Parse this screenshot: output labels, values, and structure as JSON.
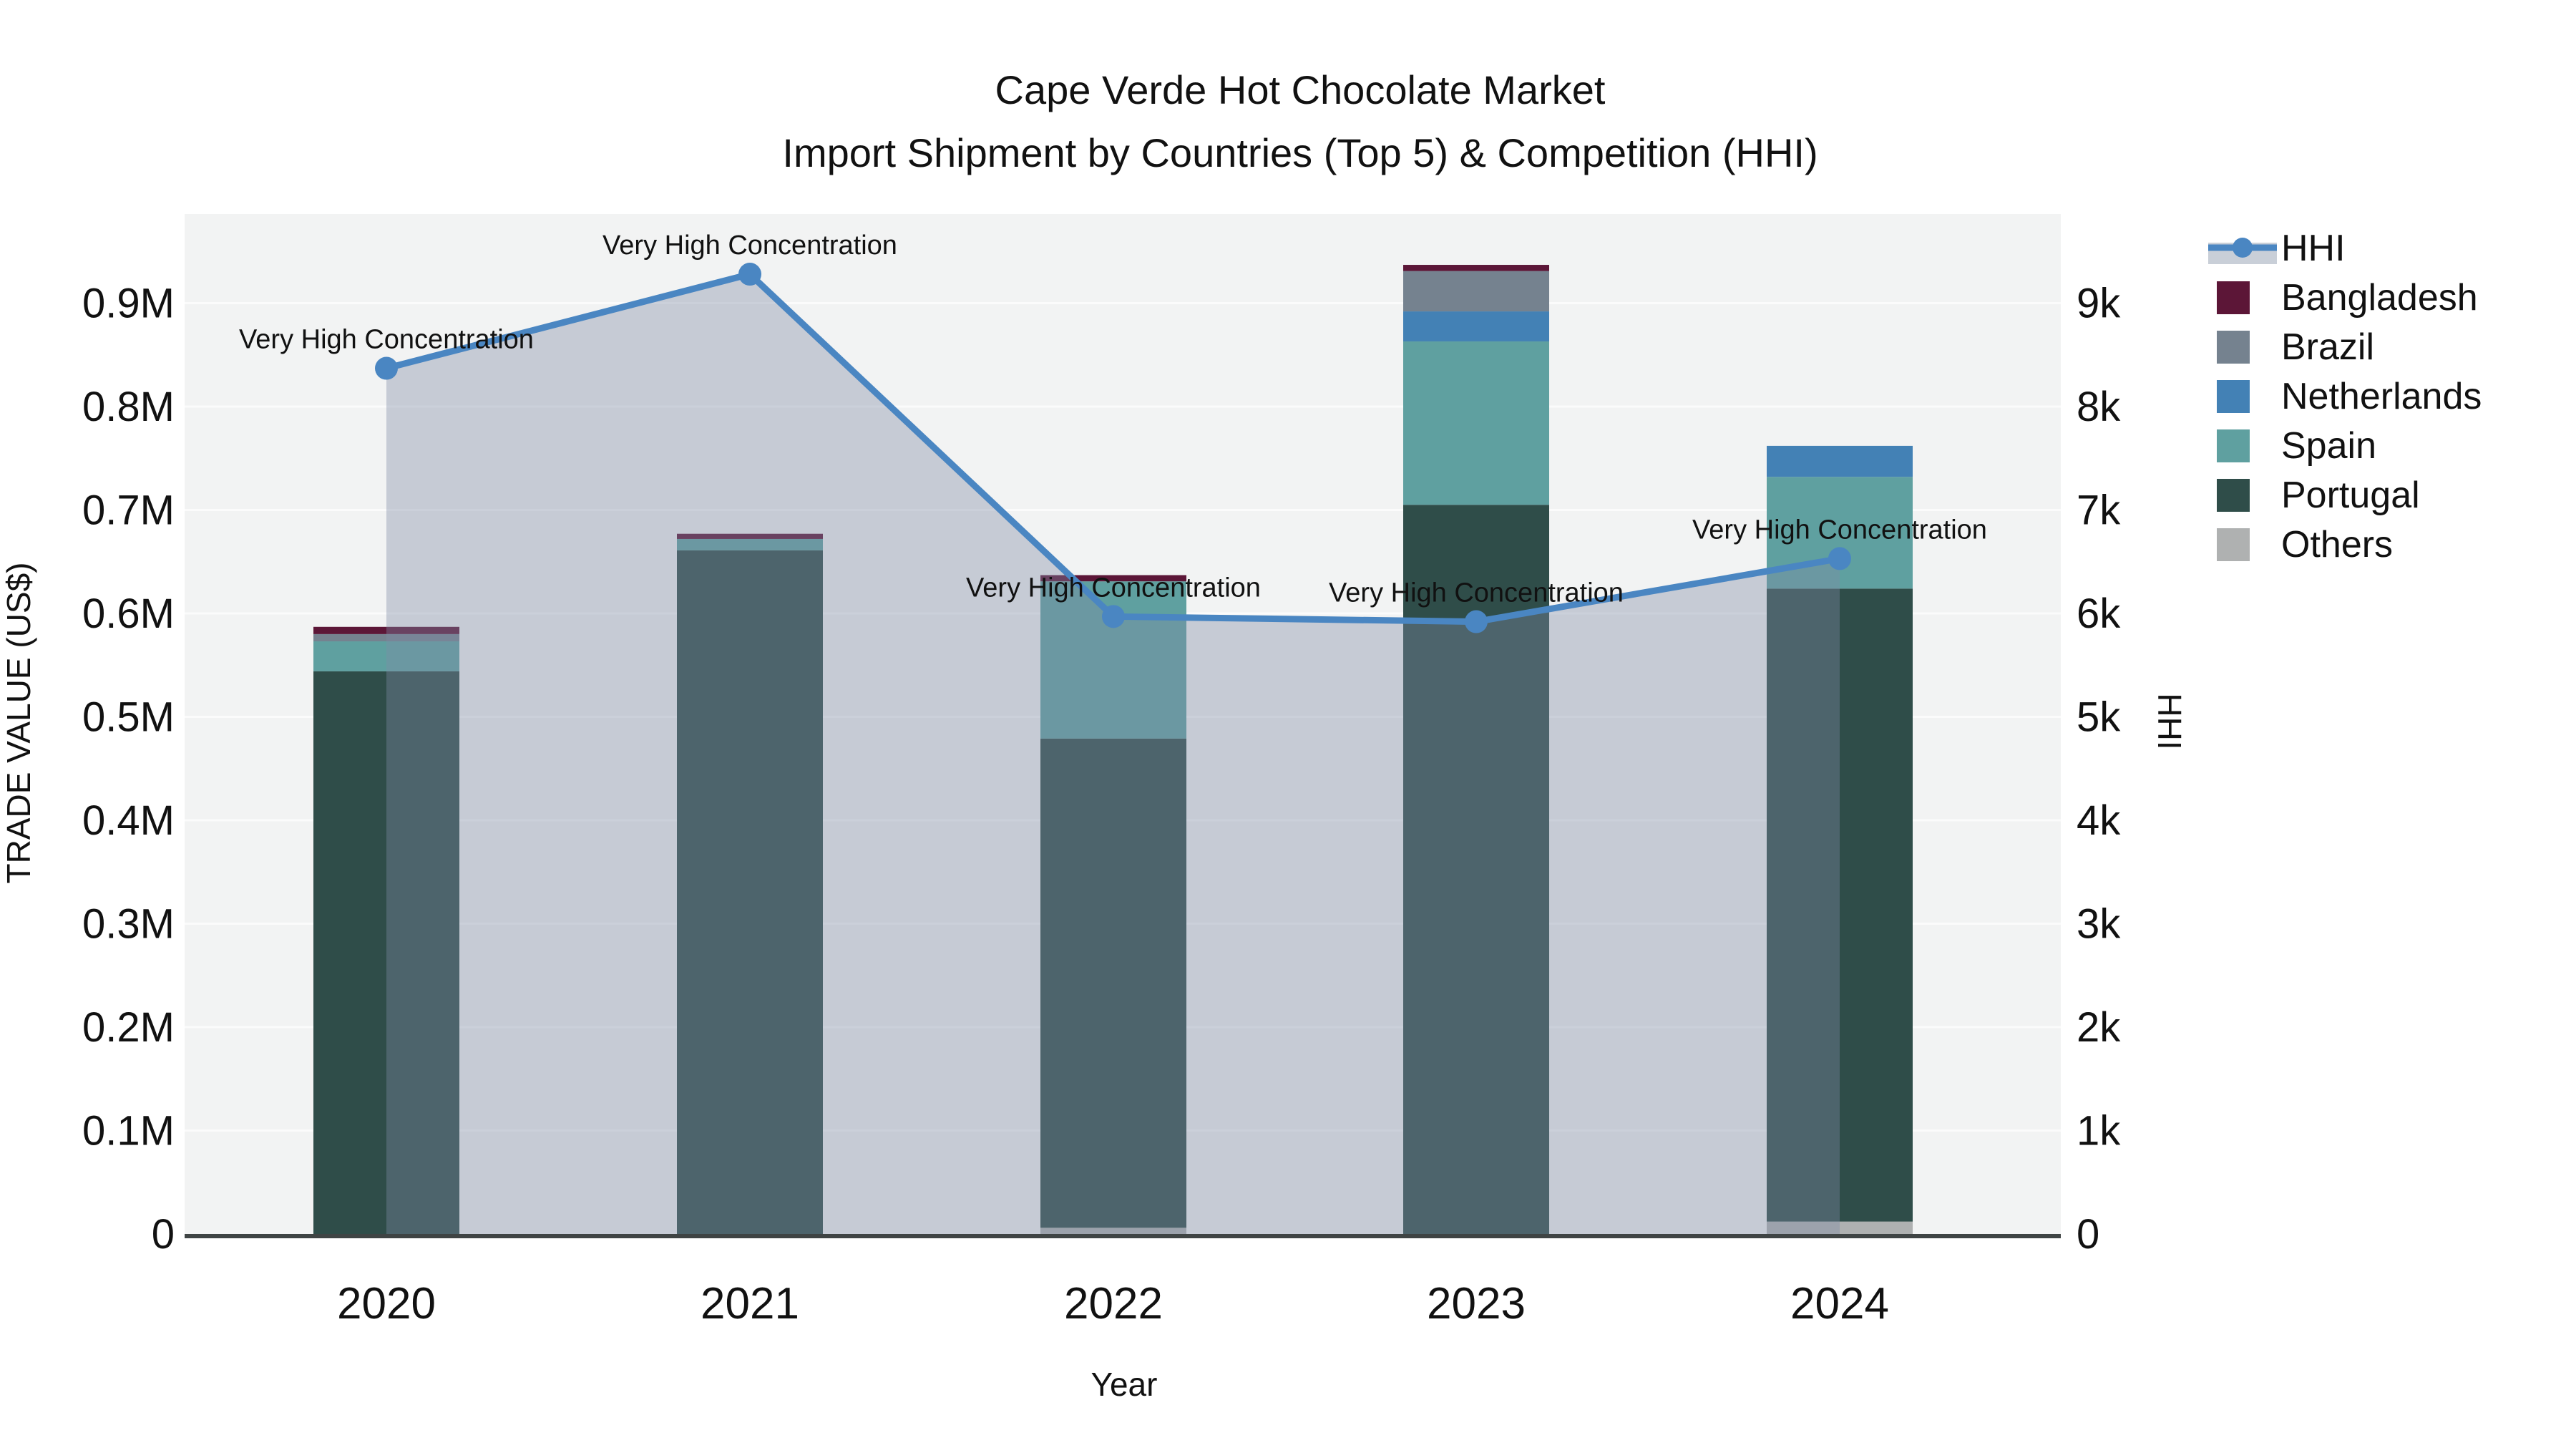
{
  "title": "Cape Verde Hot Chocolate Market",
  "subtitle": "Import Shipment by Countries (Top 5) & Competition (HHI)",
  "axes": {
    "x_title": "Year",
    "y_left_title": "TRADE VALUE (US$)",
    "y_right_title": "HHI",
    "y_left_ticks": [
      "0",
      "0.1M",
      "0.2M",
      "0.3M",
      "0.4M",
      "0.5M",
      "0.6M",
      "0.7M",
      "0.8M",
      "0.9M"
    ],
    "y_right_ticks": [
      "0",
      "1k",
      "2k",
      "3k",
      "4k",
      "5k",
      "6k",
      "7k",
      "8k",
      "9k"
    ]
  },
  "legend": {
    "items": [
      {
        "label": "HHI",
        "type": "line",
        "color": "#4A86C2",
        "band_color": "#C9CFD8"
      },
      {
        "label": "Bangladesh",
        "type": "swatch",
        "color": "#5C1637"
      },
      {
        "label": "Brazil",
        "type": "swatch",
        "color": "#75828F"
      },
      {
        "label": "Netherlands",
        "type": "swatch",
        "color": "#4381B5"
      },
      {
        "label": "Spain",
        "type": "swatch",
        "color": "#5FA0A0"
      },
      {
        "label": "Portugal",
        "type": "swatch",
        "color": "#2F4D49"
      },
      {
        "label": "Others",
        "type": "swatch",
        "color": "#AFB1B1"
      }
    ]
  },
  "chart_data": {
    "type": "bar+line",
    "categories": [
      "2020",
      "2021",
      "2022",
      "2023",
      "2024"
    ],
    "bar_stack_top_to_bottom": [
      "Bangladesh",
      "Brazil",
      "Netherlands",
      "Spain",
      "Portugal",
      "Others"
    ],
    "series": [
      {
        "name": "Bangladesh",
        "color": "#5C1637",
        "values": [
          7000,
          5000,
          6000,
          6000,
          0
        ]
      },
      {
        "name": "Brazil",
        "color": "#75828F",
        "values": [
          7000,
          0,
          0,
          39000,
          0
        ]
      },
      {
        "name": "Netherlands",
        "color": "#4381B5",
        "values": [
          0,
          0,
          0,
          29000,
          30000
        ]
      },
      {
        "name": "Spain",
        "color": "#5FA0A0",
        "values": [
          29000,
          11000,
          152000,
          158000,
          108000
        ]
      },
      {
        "name": "Portugal",
        "color": "#2F4D49",
        "values": [
          544000,
          661000,
          473000,
          705000,
          612000
        ]
      },
      {
        "name": "Others",
        "color": "#AFB1B1",
        "values": [
          0,
          0,
          6000,
          0,
          12000
        ]
      }
    ],
    "bar_totals": [
      587000,
      677000,
      637000,
      937000,
      762000
    ],
    "line_series": {
      "name": "HHI",
      "color": "#4A86C2",
      "area_fill": "rgba(125,139,165,0.38)",
      "values": [
        8370,
        9280,
        5970,
        5920,
        6530
      ]
    },
    "annotations": [
      {
        "x": "2020",
        "text": "Very High Concentration"
      },
      {
        "x": "2021",
        "text": "Very High Concentration"
      },
      {
        "x": "2022",
        "text": "Very High Concentration"
      },
      {
        "x": "2023",
        "text": "Very High Concentration"
      },
      {
        "x": "2024",
        "text": "Very High Concentration"
      }
    ],
    "title": "Cape Verde Hot Chocolate Market",
    "subtitle": "Import Shipment by Countries (Top 5) & Competition (HHI)",
    "xlabel": "Year",
    "ylabel_left": "TRADE VALUE (US$)",
    "ylabel_right": "HHI",
    "y_left_range": [
      0,
      970000
    ],
    "y_right_range": [
      0,
      9700
    ],
    "grid": true,
    "legend_position": "right"
  },
  "colors": {
    "plot_background": "#F2F3F3",
    "gridline": "#FFFFFF",
    "axis_line": "#3F4444",
    "page_background": "#FFFFFF"
  }
}
